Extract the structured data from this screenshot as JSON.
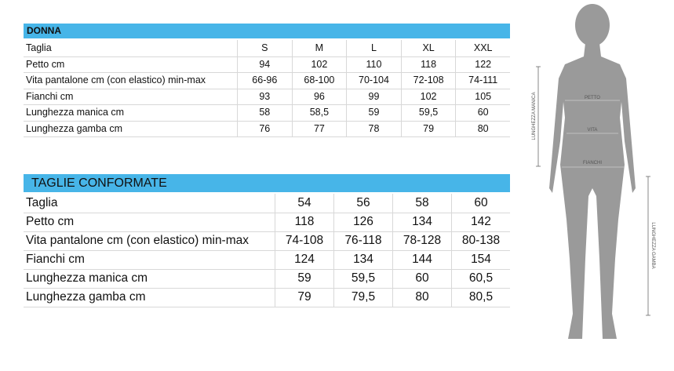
{
  "donna": {
    "title": "DONNA",
    "rows": [
      [
        "Taglia",
        "S",
        "M",
        "L",
        "XL",
        "XXL"
      ],
      [
        "Petto cm",
        "94",
        "102",
        "110",
        "118",
        "122"
      ],
      [
        "Vita pantalone cm (con elastico) min-max",
        "66-96",
        "68-100",
        "70-104",
        "72-108",
        "74-111"
      ],
      [
        "Fianchi cm",
        "93",
        "96",
        "99",
        "102",
        "105"
      ],
      [
        "Lunghezza manica cm",
        "58",
        "58,5",
        "59",
        "59,5",
        "60"
      ],
      [
        "Lunghezza gamba cm",
        "76",
        "77",
        "78",
        "79",
        "80"
      ]
    ]
  },
  "conformate": {
    "title": "TAGLIE CONFORMATE",
    "rows": [
      [
        "Taglia",
        "54",
        "56",
        "58",
        "60"
      ],
      [
        "Petto cm",
        "118",
        "126",
        "134",
        "142"
      ],
      [
        "Vita pantalone cm (con elastico) min-max",
        "74-108",
        "76-118",
        "78-128",
        "80-138"
      ],
      [
        "Fianchi cm",
        "124",
        "134",
        "144",
        "154"
      ],
      [
        "Lunghezza manica cm",
        "59",
        "59,5",
        "60",
        "60,5"
      ],
      [
        "Lunghezza gamba cm",
        "79",
        "79,5",
        "80",
        "80,5"
      ]
    ]
  },
  "figure": {
    "chest": "PETTO",
    "waist": "VITA",
    "hips": "FIANCHI",
    "sleeve": "LUNGHEZZA MANICA",
    "leg": "LUNGHEZZA GAMBA"
  }
}
